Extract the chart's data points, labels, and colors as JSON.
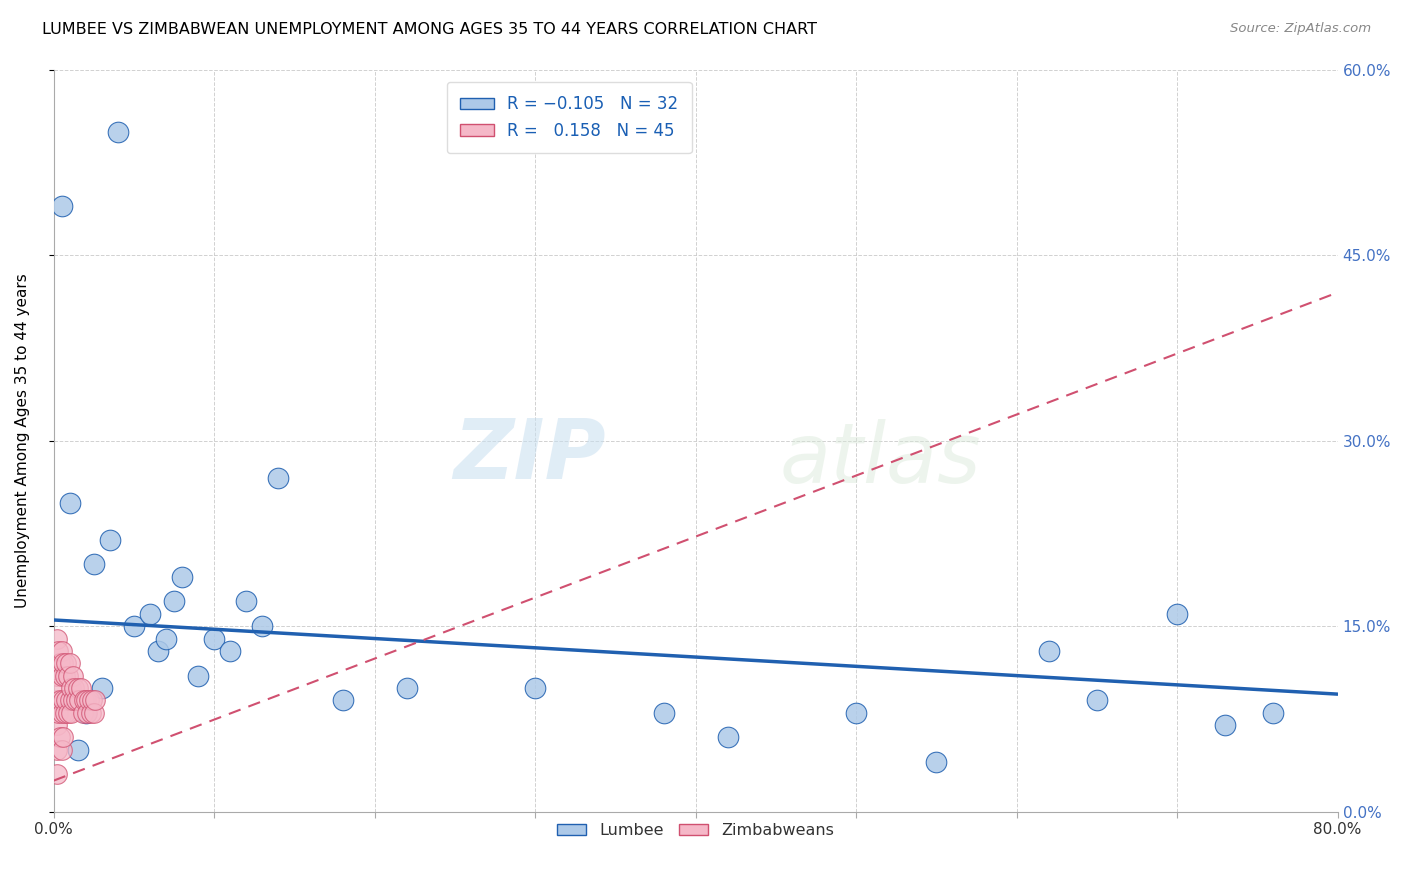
{
  "title": "LUMBEE VS ZIMBABWEAN UNEMPLOYMENT AMONG AGES 35 TO 44 YEARS CORRELATION CHART",
  "source": "Source: ZipAtlas.com",
  "ylabel": "Unemployment Among Ages 35 to 44 years",
  "xlim": [
    0,
    0.8
  ],
  "ylim": [
    0,
    0.6
  ],
  "yticks": [
    0.0,
    0.15,
    0.3,
    0.45,
    0.6
  ],
  "ytick_labels": [
    "0.0%",
    "15.0%",
    "30.0%",
    "45.0%",
    "60.0%"
  ],
  "lumbee_R": -0.105,
  "lumbee_N": 32,
  "zimbabwean_R": 0.158,
  "zimbabwean_N": 45,
  "lumbee_color": "#adc9e8",
  "zimbabwean_color": "#f5b8c8",
  "lumbee_line_color": "#2060b0",
  "zimbabwean_line_color": "#d05070",
  "watermark_zip": "ZIP",
  "watermark_atlas": "atlas",
  "lumbee_x": [
    0.005,
    0.01,
    0.015,
    0.02,
    0.025,
    0.03,
    0.035,
    0.04,
    0.05,
    0.06,
    0.065,
    0.07,
    0.075,
    0.08,
    0.09,
    0.1,
    0.11,
    0.12,
    0.13,
    0.14,
    0.18,
    0.22,
    0.3,
    0.38,
    0.42,
    0.5,
    0.55,
    0.62,
    0.65,
    0.7,
    0.73,
    0.76
  ],
  "lumbee_y": [
    0.49,
    0.25,
    0.05,
    0.08,
    0.2,
    0.1,
    0.22,
    0.55,
    0.15,
    0.16,
    0.13,
    0.14,
    0.17,
    0.19,
    0.11,
    0.14,
    0.13,
    0.17,
    0.15,
    0.27,
    0.09,
    0.1,
    0.1,
    0.08,
    0.06,
    0.08,
    0.04,
    0.13,
    0.09,
    0.16,
    0.07,
    0.08
  ],
  "zimbabwean_x": [
    0.002,
    0.002,
    0.002,
    0.002,
    0.002,
    0.002,
    0.003,
    0.003,
    0.003,
    0.004,
    0.004,
    0.004,
    0.005,
    0.005,
    0.005,
    0.005,
    0.006,
    0.006,
    0.006,
    0.007,
    0.007,
    0.008,
    0.008,
    0.009,
    0.009,
    0.01,
    0.01,
    0.011,
    0.011,
    0.012,
    0.012,
    0.013,
    0.014,
    0.015,
    0.016,
    0.017,
    0.018,
    0.019,
    0.02,
    0.021,
    0.022,
    0.023,
    0.024,
    0.025,
    0.026
  ],
  "zimbabwean_y": [
    0.14,
    0.11,
    0.09,
    0.07,
    0.05,
    0.03,
    0.13,
    0.1,
    0.08,
    0.12,
    0.09,
    0.06,
    0.13,
    0.11,
    0.08,
    0.05,
    0.12,
    0.09,
    0.06,
    0.11,
    0.08,
    0.12,
    0.09,
    0.11,
    0.08,
    0.12,
    0.09,
    0.1,
    0.08,
    0.11,
    0.09,
    0.1,
    0.09,
    0.1,
    0.09,
    0.1,
    0.08,
    0.09,
    0.09,
    0.08,
    0.09,
    0.08,
    0.09,
    0.08,
    0.09
  ],
  "lumbee_trend_x": [
    0.0,
    0.8
  ],
  "lumbee_trend_y": [
    0.155,
    0.095
  ],
  "zimbabwean_trend_x": [
    0.0,
    0.8
  ],
  "zimbabwean_trend_y": [
    0.025,
    0.42
  ]
}
